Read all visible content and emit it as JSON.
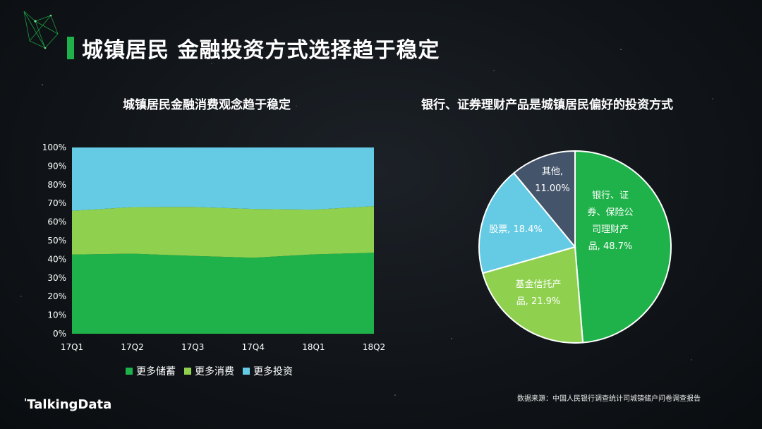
{
  "page": {
    "title": "城镇居民 金融投资方式选择趋于稳定",
    "source": "数据来源：中国人民银行调查统计司城镇储户问卷调查报告",
    "brand": "TalkingData",
    "accent_color": "#1fb24a",
    "icon": "network-logo-icon"
  },
  "chart_data": [
    {
      "type": "area",
      "stacked": true,
      "percent": true,
      "title": "城镇居民金融消费观念趋于稳定",
      "categories": [
        "17Q1",
        "17Q2",
        "17Q3",
        "17Q4",
        "18Q1",
        "18Q2"
      ],
      "ylim": [
        0,
        100
      ],
      "y_ticks": [
        "0%",
        "10%",
        "20%",
        "30%",
        "40%",
        "50%",
        "60%",
        "70%",
        "80%",
        "90%",
        "100%"
      ],
      "grid": false,
      "legend": "bottom",
      "series": [
        {
          "name": "更多储蓄",
          "color": "#1fb24a",
          "values": [
            42.5,
            43.0,
            41.8,
            40.8,
            42.6,
            43.5
          ]
        },
        {
          "name": "更多消费",
          "color": "#8fd14f",
          "values": [
            23.5,
            25.0,
            26.3,
            26.2,
            24.0,
            25.0
          ]
        },
        {
          "name": "更多投资",
          "color": "#65cbe4",
          "values": [
            34.0,
            32.0,
            31.9,
            33.0,
            33.4,
            31.5
          ]
        }
      ]
    },
    {
      "type": "pie",
      "title": "银行、证券理财产品是城镇居民偏好的投资方式",
      "slices": [
        {
          "label": [
            "银行、证",
            "券、保险公",
            "司理财产",
            "品, 48.7%"
          ],
          "value": 48.7,
          "color": "#1fb24a"
        },
        {
          "label": [
            "基金信托产",
            "品, 21.9%"
          ],
          "value": 21.9,
          "color": "#8fd14f"
        },
        {
          "label": [
            "股票, 18.4%"
          ],
          "value": 18.4,
          "color": "#65cbe4"
        },
        {
          "label": [
            "其他,",
            "11.00%"
          ],
          "value": 11.0,
          "color": "#44546a"
        }
      ]
    }
  ]
}
